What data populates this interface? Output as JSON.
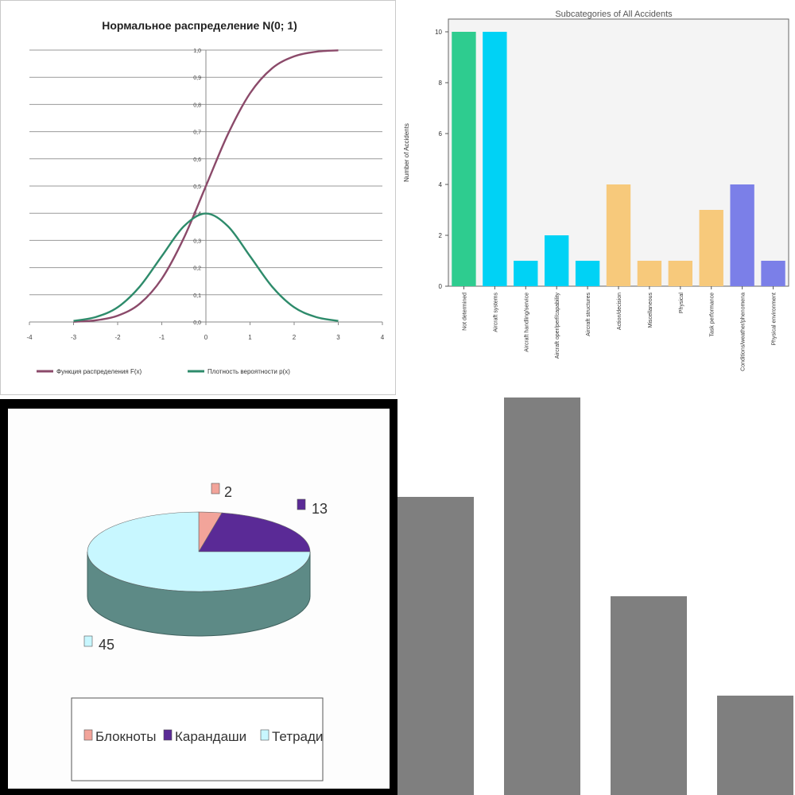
{
  "chart_data": [
    {
      "type": "line",
      "title": "Нормальное  распределение N(0; 1)",
      "x_ticks": [
        "-4",
        "-3",
        "-2",
        "-1",
        "0",
        "1",
        "2",
        "3",
        "4"
      ],
      "y_ticks": [
        "0,0",
        "0,1",
        "0,2",
        "0,3",
        "0,4",
        "0,5",
        "0,6",
        "0,7",
        "0,8",
        "0,9",
        "1,0"
      ],
      "xlim": [
        -4,
        4
      ],
      "ylim": [
        0,
        1
      ],
      "grid": true,
      "legend_position": "bottom",
      "series": [
        {
          "name": "Функция распределения F(x)",
          "color": "#8b4a6a",
          "x": [
            -3,
            -2.5,
            -2,
            -1.5,
            -1,
            -0.5,
            0,
            0.5,
            1,
            1.5,
            2,
            2.5,
            3
          ],
          "values": [
            0.001,
            0.006,
            0.023,
            0.067,
            0.159,
            0.309,
            0.5,
            0.691,
            0.841,
            0.933,
            0.977,
            0.994,
            0.999
          ]
        },
        {
          "name": "Плотность вероятности p(x)",
          "color": "#2e8b6b",
          "x": [
            -3,
            -2.5,
            -2,
            -1.5,
            -1,
            -0.5,
            0,
            0.5,
            1,
            1.5,
            2,
            2.5,
            3
          ],
          "values": [
            0.004,
            0.018,
            0.054,
            0.13,
            0.242,
            0.352,
            0.399,
            0.352,
            0.242,
            0.13,
            0.054,
            0.018,
            0.004
          ]
        }
      ]
    },
    {
      "type": "bar",
      "title": "Subcategories of All Accidents",
      "xlabel": "",
      "ylabel": "Number of Accidents",
      "ylim": [
        0,
        10.5
      ],
      "y_ticks": [
        "0",
        "2",
        "4",
        "6",
        "8",
        "10"
      ],
      "categories": [
        "Not determined",
        "Aircraft systems",
        "Aircraft handling/service",
        "Aircraft oper/perf/capability",
        "Aircraft structures",
        "Action/decision",
        "Miscellaneous",
        "Physical",
        "Task performance",
        "Conditions/weather/phenomena",
        "Physical environment"
      ],
      "values": [
        10,
        10,
        1,
        2,
        1,
        4,
        1,
        1,
        3,
        4,
        1
      ],
      "colors": [
        "#2ecc8f",
        "#00d2f5",
        "#00d2f5",
        "#00d2f5",
        "#00d2f5",
        "#f7c97b",
        "#f7c97b",
        "#f7c97b",
        "#f7c97b",
        "#7b7fe8",
        "#7b7fe8"
      ]
    },
    {
      "type": "pie",
      "slices": [
        {
          "label": "Блокноты",
          "value": 2,
          "value_text": "2",
          "color": "#f2a49a"
        },
        {
          "label": "Карандаши",
          "value": 13,
          "value_text": "13",
          "color": "#5a2a96"
        },
        {
          "label": "Тетради",
          "value": 45,
          "value_text": "45",
          "color": "#c8f7ff"
        }
      ],
      "side_color": "#5d8a86",
      "legend_position": "bottom"
    },
    {
      "type": "bar",
      "categories": [
        "",
        "",
        "",
        ""
      ],
      "values": [
        0.75,
        1.0,
        0.5,
        0.25
      ],
      "color": "#7f7f7f",
      "ylim": [
        0,
        1
      ]
    }
  ]
}
